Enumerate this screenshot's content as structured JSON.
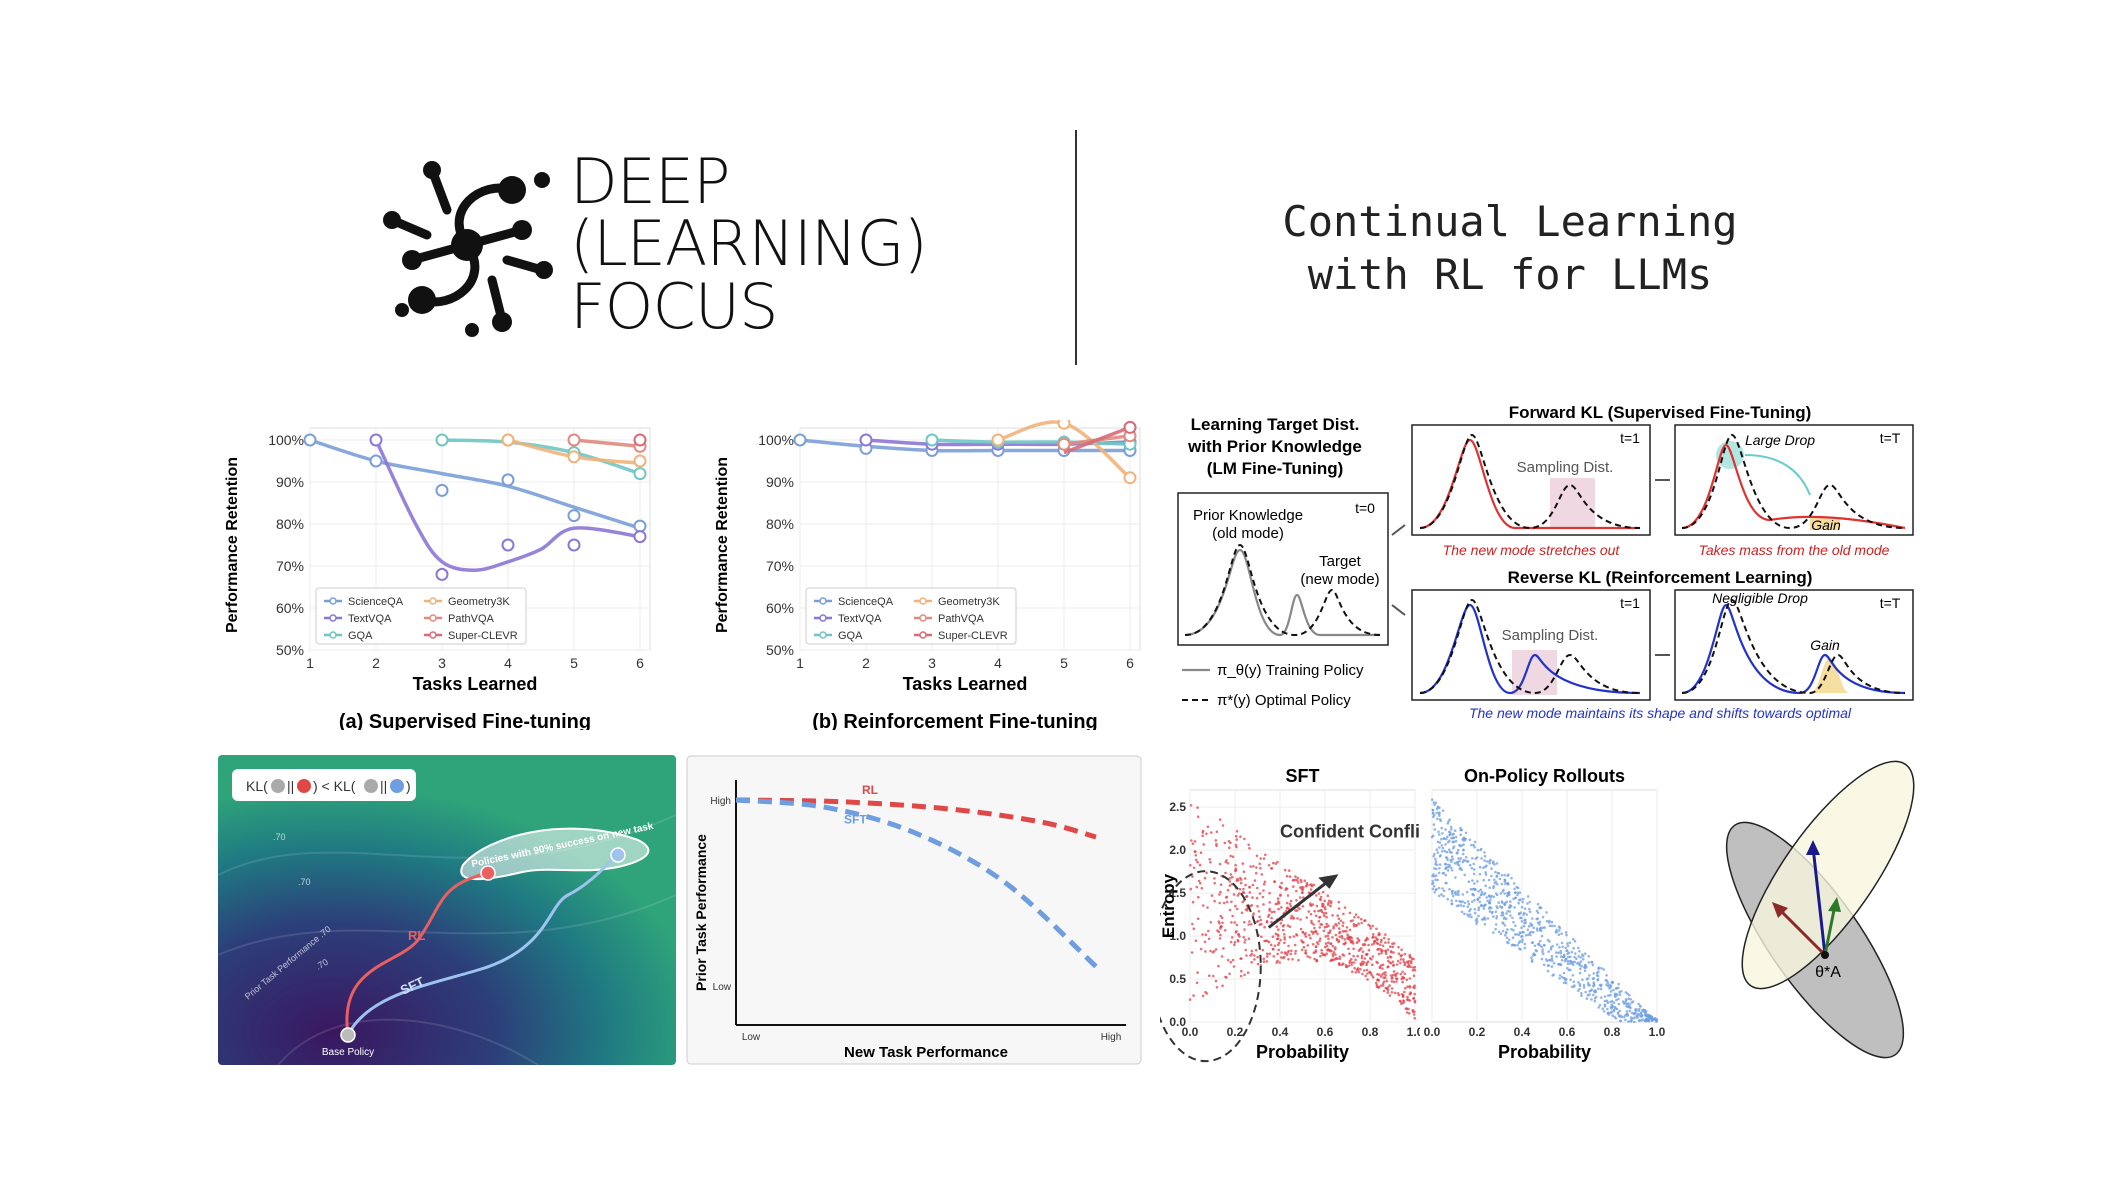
{
  "header": {
    "logo": {
      "line1": "DEEP",
      "line2": "(LEARNING)",
      "line3": "FOCUS",
      "icon": "neural-network-logo-icon"
    },
    "title_line1": "Continual Learning",
    "title_line2": "with RL for LLMs"
  },
  "colors": {
    "sciqa": "#7a9fd6",
    "textvqa": "#8c76d6",
    "gqa": "#6fc6c4",
    "geo": "#f0b27a",
    "pathvqa": "#e08a7f",
    "superclevr": "#d96a78",
    "rl": "#e04848",
    "sft": "#6e9de0"
  },
  "chart_data": [
    {
      "type": "line",
      "title": "(a) Supervised Fine-tuning",
      "xlabel": "Tasks Learned",
      "ylabel": "Performance Retention",
      "x": [
        1,
        2,
        3,
        4,
        5,
        6
      ],
      "yticks": [
        "100%",
        "90%",
        "80%",
        "70%",
        "60%",
        "50%"
      ],
      "ylim": [
        50,
        100
      ],
      "series": [
        {
          "name": "ScienceQA",
          "color": "#7a9fd6",
          "points": [
            [
              1,
              100
            ],
            [
              2,
              95
            ],
            [
              3,
              88
            ],
            [
              4,
              90.5
            ],
            [
              5,
              82
            ],
            [
              6,
              79.5
            ]
          ],
          "curve": [
            [
              1,
              100
            ],
            [
              2,
              95
            ],
            [
              3,
              92
            ],
            [
              4,
              89
            ],
            [
              5,
              84
            ],
            [
              6,
              79
            ]
          ]
        },
        {
          "name": "TextVQA",
          "color": "#8c76d6",
          "points": [
            [
              2,
              100
            ],
            [
              3,
              68
            ],
            [
              4,
              75
            ],
            [
              5,
              75
            ],
            [
              6,
              77
            ]
          ],
          "curve": [
            [
              2,
              100
            ],
            [
              2.6,
              80
            ],
            [
              3,
              71
            ],
            [
              3.5,
              69
            ],
            [
              4,
              71
            ],
            [
              4.5,
              74
            ],
            [
              5,
              79
            ],
            [
              6,
              77
            ]
          ]
        },
        {
          "name": "GQA",
          "color": "#6fc6c4",
          "points": [
            [
              3,
              100
            ],
            [
              4,
              100
            ],
            [
              5,
              97
            ],
            [
              6,
              92
            ]
          ],
          "curve": [
            [
              3,
              100
            ],
            [
              4,
              99.5
            ],
            [
              5,
              97
            ],
            [
              6,
              92
            ]
          ]
        },
        {
          "name": "Geometry3K",
          "color": "#f0b27a",
          "points": [
            [
              4,
              100
            ],
            [
              5,
              96
            ],
            [
              6,
              95
            ]
          ],
          "curve": [
            [
              4,
              100
            ],
            [
              5,
              96
            ],
            [
              6,
              94.5
            ]
          ]
        },
        {
          "name": "PathVQA",
          "color": "#e08a7f",
          "points": [
            [
              5,
              100
            ],
            [
              6,
              98.5
            ]
          ],
          "curve": [
            [
              5,
              100
            ],
            [
              6,
              98.5
            ]
          ]
        },
        {
          "name": "Super-CLEVR",
          "color": "#d96a78",
          "points": [
            [
              6,
              100
            ]
          ],
          "curve": [
            [
              6,
              100
            ]
          ]
        }
      ],
      "legend": [
        "ScienceQA",
        "Geometry3K",
        "TextVQA",
        "PathVQA",
        "GQA",
        "Super-CLEVR"
      ]
    },
    {
      "type": "line",
      "title": "(b) Reinforcement Fine-tuning",
      "xlabel": "Tasks Learned",
      "ylabel": "Performance Retention",
      "x": [
        1,
        2,
        3,
        4,
        5,
        6
      ],
      "yticks": [
        "100%",
        "90%",
        "80%",
        "70%",
        "60%",
        "50%"
      ],
      "ylim": [
        50,
        100
      ],
      "series": [
        {
          "name": "ScienceQA",
          "color": "#7a9fd6",
          "points": [
            [
              1,
              100
            ],
            [
              2,
              98
            ],
            [
              3,
              97.5
            ],
            [
              4,
              97.5
            ],
            [
              5,
              97.5
            ],
            [
              6,
              97.5
            ]
          ],
          "curve": [
            [
              1,
              100
            ],
            [
              2,
              98.5
            ],
            [
              3,
              97.5
            ],
            [
              4,
              97.5
            ],
            [
              5,
              97.5
            ],
            [
              6,
              97.5
            ]
          ]
        },
        {
          "name": "TextVQA",
          "color": "#8c76d6",
          "points": [
            [
              2,
              100
            ],
            [
              3,
              99
            ],
            [
              4,
              99
            ],
            [
              5,
              99
            ],
            [
              6,
              99.5
            ]
          ],
          "curve": [
            [
              2,
              100
            ],
            [
              3,
              99
            ],
            [
              4,
              99
            ],
            [
              5,
              99
            ],
            [
              6,
              99.5
            ]
          ]
        },
        {
          "name": "GQA",
          "color": "#6fc6c4",
          "points": [
            [
              3,
              100
            ],
            [
              4,
              99.5
            ],
            [
              5,
              99.5
            ],
            [
              6,
              99
            ]
          ],
          "curve": [
            [
              3,
              100
            ],
            [
              4,
              99.5
            ],
            [
              5,
              99.5
            ],
            [
              6,
              99
            ]
          ]
        },
        {
          "name": "Geometry3K",
          "color": "#f0b27a",
          "points": [
            [
              4,
              100
            ],
            [
              5,
              104
            ],
            [
              6,
              91
            ]
          ],
          "curve": [
            [
              4,
              100
            ],
            [
              5,
              104
            ],
            [
              6,
              91
            ]
          ]
        },
        {
          "name": "PathVQA",
          "color": "#e08a7f",
          "points": [
            [
              5,
              99
            ],
            [
              6,
              101
            ]
          ],
          "curve": [
            [
              5,
              99
            ],
            [
              6,
              101
            ]
          ]
        },
        {
          "name": "Super-CLEVR",
          "color": "#d96a78",
          "points": [
            [
              6,
              103
            ]
          ],
          "curve": [
            [
              5,
              97
            ],
            [
              6,
              103
            ]
          ]
        }
      ],
      "legend": [
        "ScienceQA",
        "Geometry3K",
        "TextVQA",
        "PathVQA",
        "GQA",
        "Super-CLEVR"
      ]
    },
    {
      "type": "line",
      "title": "",
      "xlabel": "New Task Performance",
      "ylabel": "Prior Task Performance",
      "xticks": [
        "Low",
        "High"
      ],
      "yticks": [
        "High",
        "Low"
      ],
      "series": [
        {
          "name": "RL",
          "color": "#e04848",
          "values": [
            [
              0,
              1.0
            ],
            [
              0.3,
              0.99
            ],
            [
              0.6,
              0.95
            ],
            [
              0.85,
              0.88
            ],
            [
              1,
              0.8
            ]
          ]
        },
        {
          "name": "SFT",
          "color": "#6e9de0",
          "values": [
            [
              0,
              1.0
            ],
            [
              0.25,
              0.96
            ],
            [
              0.5,
              0.82
            ],
            [
              0.75,
              0.55
            ],
            [
              1,
              0.1
            ]
          ]
        }
      ]
    },
    {
      "type": "scatter",
      "title": "SFT",
      "xlabel": "Probability",
      "ylabel": "Entropy",
      "xticks": [
        "0.0",
        "0.2",
        "0.4",
        "0.6",
        "0.8",
        "1.0"
      ],
      "yticks": [
        "0.0",
        "0.5",
        "1.0",
        "1.5",
        "2.0",
        "2.5"
      ],
      "xlim": [
        0,
        1
      ],
      "ylim": [
        0,
        2.7
      ],
      "annotation": "Confident Conflicts"
    },
    {
      "type": "scatter",
      "title": "On-Policy Rollouts",
      "xlabel": "Probability",
      "ylabel": "",
      "xticks": [
        "0.0",
        "0.2",
        "0.4",
        "0.6",
        "0.8",
        "1.0"
      ],
      "xlim": [
        0,
        1
      ],
      "ylim": [
        0,
        2.7
      ]
    }
  ],
  "kl_diagram": {
    "learning_target_title": [
      "Learning Target Dist.",
      "with Prior Knowledge",
      "(LM Fine-Tuning)"
    ],
    "prior_knowledge": "Prior Knowledge",
    "old_mode": "(old mode)",
    "target": "Target",
    "new_mode": "(new mode)",
    "t0": "t=0",
    "legend_training": "π_θ(y) Training Policy",
    "legend_optimal": "π*(y) Optimal Policy",
    "forward_title": "Forward KL (Supervised Fine-Tuning)",
    "reverse_title": "Reverse KL (Reinforcement Learning)",
    "t1": "t=1",
    "tT": "t=T",
    "sampling_dist": "Sampling Dist.",
    "large_drop": "Large Drop",
    "gain": "Gain",
    "negligible_drop": "Negligible Drop",
    "forward_caption1": "The new mode stretches out",
    "forward_caption2": "Takes mass from the old mode",
    "reverse_caption": "The new mode maintains its shape and shifts towards optimal"
  },
  "landscape": {
    "kl_label": "KL(",
    "kl_sep": "||",
    "kl_lt": ") < KL(",
    "kl_end": ")",
    "region_label": "Policies with 90% success on new task",
    "rl_label": "RL",
    "sft_label": "SFT",
    "base_label": "Base Policy",
    "axis_label": "Prior Task Performance .70",
    "contour1": ".70",
    "contour2": ".70",
    "contour3": ".70"
  },
  "ellipse": {
    "label": "θ*A"
  }
}
